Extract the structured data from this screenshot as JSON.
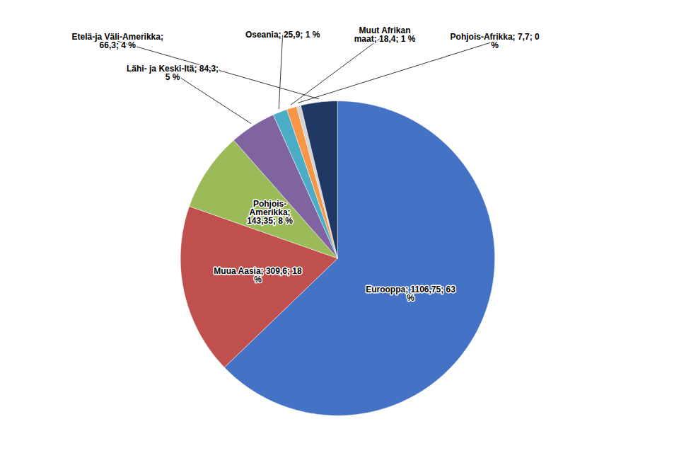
{
  "chart_data": {
    "type": "pie",
    "categories": [
      "Eurooppa",
      "Muua Aasia",
      "Pohjois-Amerikka",
      "Lähi- ja Keski-Itä",
      "Oseania",
      "Muut Afrikan maat",
      "Pohjois-Afrikka",
      "Etelä-ja Väli-Amerikka"
    ],
    "values": [
      1106.75,
      309.6,
      143.35,
      84.3,
      25.9,
      18.4,
      7.7,
      66.3
    ],
    "colors": [
      "#4472C4",
      "#C0504D",
      "#9BBB59",
      "#8064A2",
      "#4BACC6",
      "#F79646",
      "#D3D3D3",
      "#1F3864"
    ],
    "data_labels": true,
    "value_labels": [
      "Eurooppa; 1106,75; 63\n%",
      "Muua Aasia; 309,6; 18\n%",
      "Pohjois-\nAmerikka;\n143,35; 8 %",
      "Lähi- ja Keski-Itä; 84,3;\n5 %",
      "Oseania; 25,9; 1 %",
      "Muut Afrikan\nmaat; 18,4; 1 %",
      "Pohjois-Afrikka; 7,7; 0\n%",
      "Etelä-ja Väli-Amerikka;\n66,3; 4 %"
    ]
  }
}
